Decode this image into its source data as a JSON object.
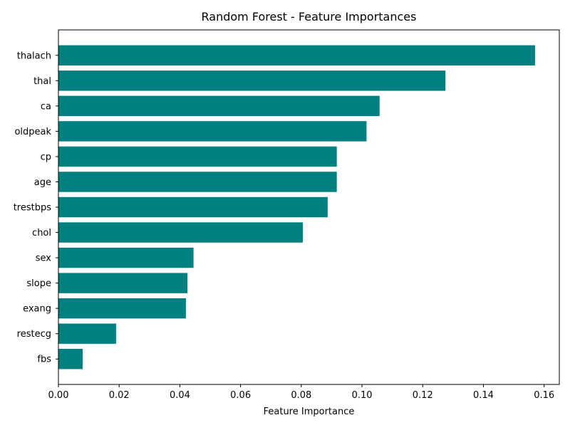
{
  "chart_data": {
    "type": "bar",
    "orientation": "horizontal",
    "title": "Random Forest - Feature Importances",
    "xlabel": "Feature Importance",
    "ylabel": "",
    "xlim": [
      0,
      0.165
    ],
    "xticks": [
      0.0,
      0.02,
      0.04,
      0.06,
      0.08,
      0.1,
      0.12,
      0.14,
      0.16
    ],
    "xtick_labels": [
      "0.00",
      "0.02",
      "0.04",
      "0.06",
      "0.08",
      "0.10",
      "0.12",
      "0.14",
      "0.16"
    ],
    "grid": false,
    "bar_color": "#008080",
    "categories": [
      "thalach",
      "thal",
      "ca",
      "oldpeak",
      "cp",
      "age",
      "trestbps",
      "chol",
      "sex",
      "slope",
      "exang",
      "restecg",
      "fbs"
    ],
    "values": [
      0.157,
      0.1275,
      0.1058,
      0.1015,
      0.0917,
      0.0917,
      0.0887,
      0.0805,
      0.0445,
      0.0425,
      0.042,
      0.019,
      0.008
    ]
  }
}
